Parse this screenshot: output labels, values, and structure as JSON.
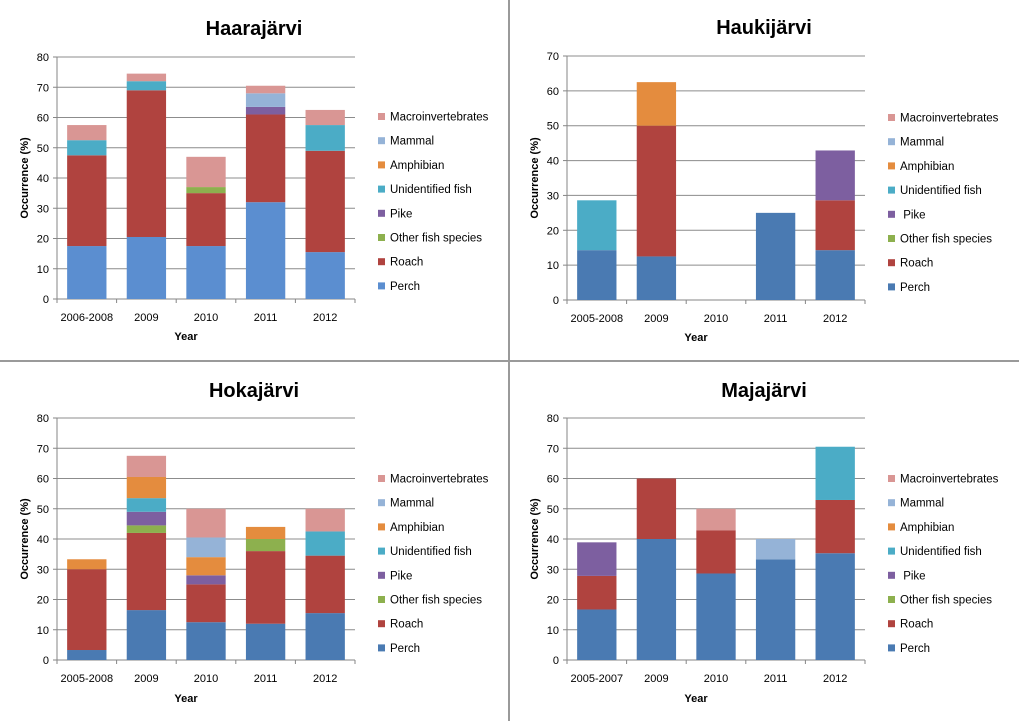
{
  "colors": {
    "macroinvertebrates": "#D99694",
    "mammal": "#95B3D7",
    "amphibian": "#E48C3E",
    "unidentified_fish": "#4BACC6",
    "pike": "#7D5FA0",
    "other_fish": "#8DB04E",
    "roach": "#B0433F",
    "perch_a": "#5B8ED0",
    "perch_b": "#4A7AB2"
  },
  "legend_labels": [
    "Macroinvertebrates",
    "Mammal",
    "Amphibian",
    "Unidentified fish",
    "Pike",
    "Other fish species",
    "Roach",
    "Perch"
  ],
  "legend_labels_alt": [
    "Macroinvertebrates",
    "Mammal",
    "Amphibian",
    "Unidentified fish",
    " Pike",
    "Other fish species",
    "Roach",
    "Perch"
  ],
  "chart_data": [
    {
      "type": "bar",
      "stacked": true,
      "title": "Haarajärvi",
      "xlabel": "Year",
      "ylabel": "Occurrence (%)",
      "ylim": [
        0,
        80
      ],
      "yticks": [
        0,
        10,
        20,
        30,
        40,
        50,
        60,
        70,
        80
      ],
      "categories": [
        "2006-2008",
        "2009",
        "2010",
        "2011",
        "2012"
      ],
      "grid": true,
      "legend_position": "right",
      "series": [
        {
          "name": "Perch",
          "values": [
            17.5,
            20.5,
            17.5,
            32,
            15.5
          ]
        },
        {
          "name": "Roach",
          "values": [
            30,
            48.5,
            17.5,
            29,
            33.5
          ]
        },
        {
          "name": "Other fish species",
          "values": [
            0,
            0,
            2,
            0,
            0
          ]
        },
        {
          "name": "Pike",
          "values": [
            0,
            0,
            0,
            2.5,
            0
          ]
        },
        {
          "name": "Unidentified fish",
          "values": [
            5,
            3,
            0,
            0,
            8.5
          ]
        },
        {
          "name": "Amphibian",
          "values": [
            0,
            0,
            0,
            0,
            0
          ]
        },
        {
          "name": "Mammal",
          "values": [
            0,
            0,
            0,
            4.5,
            0
          ]
        },
        {
          "name": "Macroinvertebrates",
          "values": [
            5,
            2.5,
            10,
            2.5,
            5
          ]
        }
      ]
    },
    {
      "type": "bar",
      "stacked": true,
      "title": "Haukijärvi",
      "xlabel": "Year",
      "ylabel": "Occurrence (%)",
      "ylim": [
        0,
        70
      ],
      "yticks": [
        0,
        10,
        20,
        30,
        40,
        50,
        60,
        70
      ],
      "categories": [
        "2005-2008",
        "2009",
        "2010",
        "2011",
        "2012"
      ],
      "grid": true,
      "legend_position": "right",
      "series": [
        {
          "name": "Perch",
          "values": [
            14.3,
            12.5,
            0,
            25,
            14.3
          ]
        },
        {
          "name": "Roach",
          "values": [
            0,
            37.5,
            0,
            0,
            14.3
          ]
        },
        {
          "name": "Other fish species",
          "values": [
            0,
            0,
            0,
            0,
            0
          ]
        },
        {
          "name": "Pike",
          "values": [
            0,
            0,
            0,
            0,
            14.3
          ]
        },
        {
          "name": "Unidentified fish",
          "values": [
            14.3,
            0,
            0,
            0,
            0
          ]
        },
        {
          "name": "Amphibian",
          "values": [
            0,
            12.5,
            0,
            0,
            0
          ]
        },
        {
          "name": "Mammal",
          "values": [
            0,
            0,
            0,
            0,
            0
          ]
        },
        {
          "name": "Macroinvertebrates",
          "values": [
            0,
            0,
            0,
            0,
            0
          ]
        }
      ]
    },
    {
      "type": "bar",
      "stacked": true,
      "title": "Hokajärvi",
      "xlabel": "Year",
      "ylabel": "Occurrence (%)",
      "ylim": [
        0,
        80
      ],
      "yticks": [
        0,
        10,
        20,
        30,
        40,
        50,
        60,
        70,
        80
      ],
      "categories": [
        "2005-2008",
        "2009",
        "2010",
        "2011",
        "2012"
      ],
      "grid": true,
      "legend_position": "right",
      "series": [
        {
          "name": "Perch",
          "values": [
            3.3,
            16.5,
            12.5,
            12,
            15.5
          ]
        },
        {
          "name": "Roach",
          "values": [
            26.7,
            25.5,
            12.5,
            24,
            19
          ]
        },
        {
          "name": "Other fish species",
          "values": [
            0,
            2.5,
            0,
            4,
            0
          ]
        },
        {
          "name": "Pike",
          "values": [
            0,
            4.5,
            3,
            0,
            0
          ]
        },
        {
          "name": "Unidentified fish",
          "values": [
            0,
            4.5,
            0,
            0,
            8
          ]
        },
        {
          "name": "Amphibian",
          "values": [
            3.3,
            7,
            6,
            4,
            0
          ]
        },
        {
          "name": "Mammal",
          "values": [
            0,
            0,
            6.5,
            0,
            0
          ]
        },
        {
          "name": "Macroinvertebrates",
          "values": [
            0,
            7,
            9.5,
            0,
            7.5
          ]
        }
      ]
    },
    {
      "type": "bar",
      "stacked": true,
      "title": "Majajärvi",
      "xlabel": "Year",
      "ylabel": "Occurrence (%)",
      "ylim": [
        0,
        80
      ],
      "yticks": [
        0,
        10,
        20,
        30,
        40,
        50,
        60,
        70,
        80
      ],
      "categories": [
        "2005-2007",
        "2009",
        "2010",
        "2011",
        "2012"
      ],
      "grid": true,
      "legend_position": "right",
      "series": [
        {
          "name": "Perch",
          "values": [
            16.7,
            40,
            28.6,
            33.3,
            35.3
          ]
        },
        {
          "name": "Roach",
          "values": [
            11.1,
            20,
            14.3,
            0,
            17.6
          ]
        },
        {
          "name": "Other fish species",
          "values": [
            0,
            0,
            0,
            0,
            0
          ]
        },
        {
          "name": "Pike",
          "values": [
            11.1,
            0,
            0,
            0,
            0
          ]
        },
        {
          "name": "Unidentified fish",
          "values": [
            0,
            0,
            0,
            0,
            17.6
          ]
        },
        {
          "name": "Amphibian",
          "values": [
            0,
            0,
            0,
            0,
            0
          ]
        },
        {
          "name": "Mammal",
          "values": [
            0,
            0,
            0,
            6.7,
            0
          ]
        },
        {
          "name": "Macroinvertebrates",
          "values": [
            0,
            0,
            7.1,
            0,
            0
          ]
        }
      ]
    }
  ]
}
